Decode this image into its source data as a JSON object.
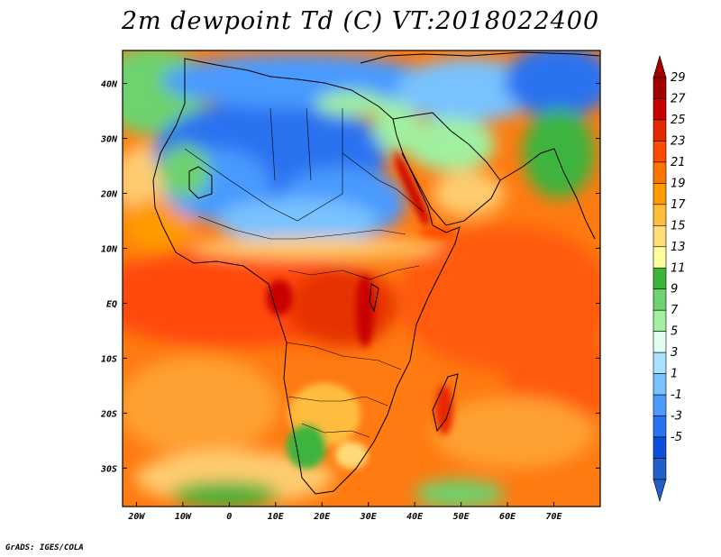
{
  "title": "2m dewpoint Td (C) VT:2018022400",
  "credit": "GrADS: IGES/COLA",
  "map": {
    "lon_range": [
      -23,
      80
    ],
    "lat_range": [
      -37,
      46
    ],
    "lon_ticks": [
      {
        "value": -20,
        "label": "20W"
      },
      {
        "value": -10,
        "label": "10W"
      },
      {
        "value": 0,
        "label": "0"
      },
      {
        "value": 10,
        "label": "10E"
      },
      {
        "value": 20,
        "label": "20E"
      },
      {
        "value": 30,
        "label": "30E"
      },
      {
        "value": 40,
        "label": "40E"
      },
      {
        "value": 50,
        "label": "50E"
      },
      {
        "value": 60,
        "label": "60E"
      },
      {
        "value": 70,
        "label": "70E"
      }
    ],
    "lat_ticks": [
      {
        "value": 40,
        "label": "40N"
      },
      {
        "value": 30,
        "label": "30N"
      },
      {
        "value": 20,
        "label": "20N"
      },
      {
        "value": 10,
        "label": "10N"
      },
      {
        "value": 0,
        "label": "EQ"
      },
      {
        "value": -10,
        "label": "10S"
      },
      {
        "value": -20,
        "label": "20S"
      },
      {
        "value": -30,
        "label": "30S"
      }
    ]
  },
  "legend": {
    "labels": [
      "29",
      "27",
      "25",
      "23",
      "21",
      "19",
      "17",
      "15",
      "13",
      "11",
      "9",
      "7",
      "5",
      "3",
      "1",
      "-1",
      "-3",
      "-5"
    ],
    "colors": [
      "#a50000",
      "#c80000",
      "#e62800",
      "#ff4a00",
      "#ff7400",
      "#ff9a00",
      "#ffbd3c",
      "#ffdc78",
      "#ffff9c",
      "#3cb43c",
      "#6ed26e",
      "#a0f0a0",
      "#e0fff0",
      "#a8e2ff",
      "#78c2ff",
      "#4a9aff",
      "#2a72f0",
      "#0a50dc",
      "#2060c8"
    ],
    "top_color": "#a50000",
    "bottom_color": "#2060c8"
  }
}
